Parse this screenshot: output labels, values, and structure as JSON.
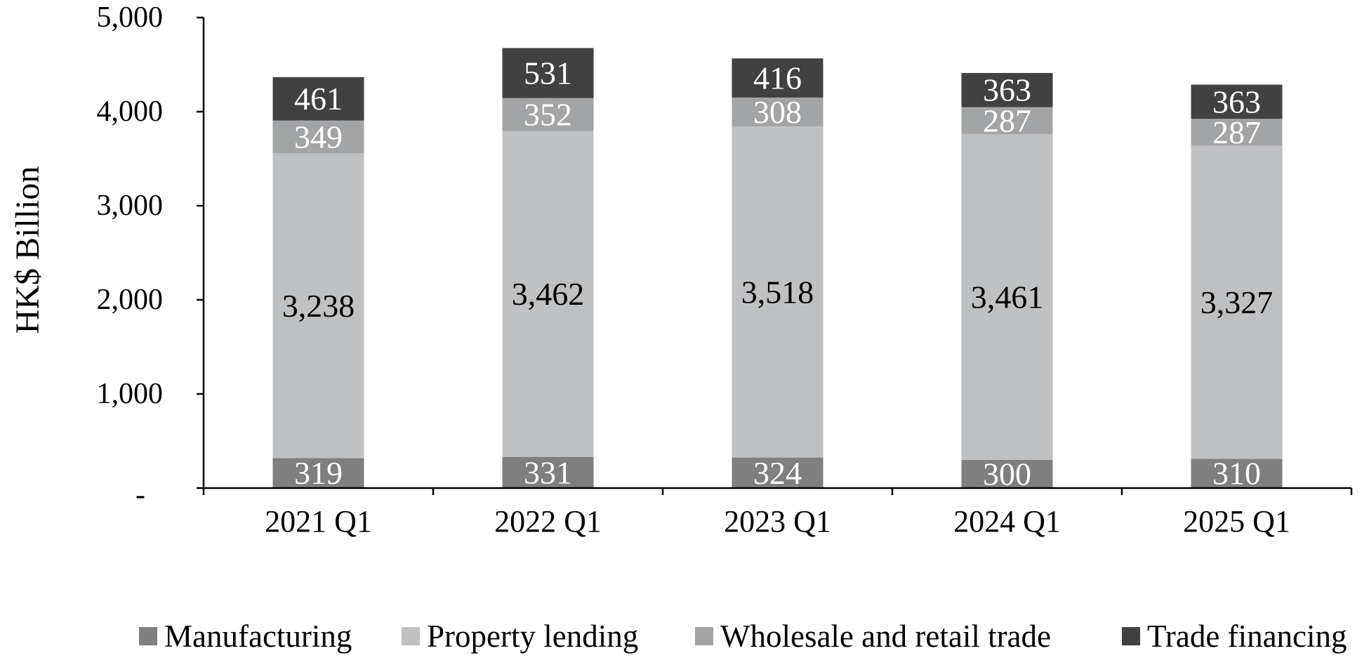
{
  "chart_data": {
    "type": "bar",
    "stacked": true,
    "ylabel": "HK$ Billion",
    "xlabel": "",
    "ylim": [
      0,
      5000
    ],
    "yticks": [
      0,
      1000,
      2000,
      3000,
      4000,
      5000
    ],
    "ytick_labels": [
      "-",
      "1,000",
      "2,000",
      "3,000",
      "4,000",
      "5,000"
    ],
    "categories": [
      "2021 Q1",
      "2022 Q1",
      "2023 Q1",
      "2024 Q1",
      "2025 Q1"
    ],
    "series": [
      {
        "name": "Manufacturing",
        "color": "#7f7f7f",
        "label_color": "#ffffff",
        "values": [
          319,
          331,
          324,
          300,
          310
        ],
        "value_labels": [
          "319",
          "331",
          "324",
          "300",
          "310"
        ]
      },
      {
        "name": "Property lending",
        "color": "#bfc0c2",
        "label_color": "#000000",
        "values": [
          3238,
          3462,
          3518,
          3461,
          3327
        ],
        "value_labels": [
          "3,238",
          "3,462",
          "3,518",
          "3,461",
          "3,327"
        ]
      },
      {
        "name": "Wholesale and retail trade",
        "color": "#a3a4a6",
        "label_color": "#ffffff",
        "values": [
          349,
          352,
          308,
          287,
          287
        ],
        "value_labels": [
          "349",
          "352",
          "308",
          "287",
          "287"
        ]
      },
      {
        "name": "Trade financing",
        "color": "#414141",
        "label_color": "#ffffff",
        "values": [
          461,
          531,
          416,
          363,
          363
        ],
        "value_labels": [
          "461",
          "531",
          "416",
          "363",
          "363"
        ]
      }
    ],
    "legend_position": "bottom",
    "grid": false
  }
}
